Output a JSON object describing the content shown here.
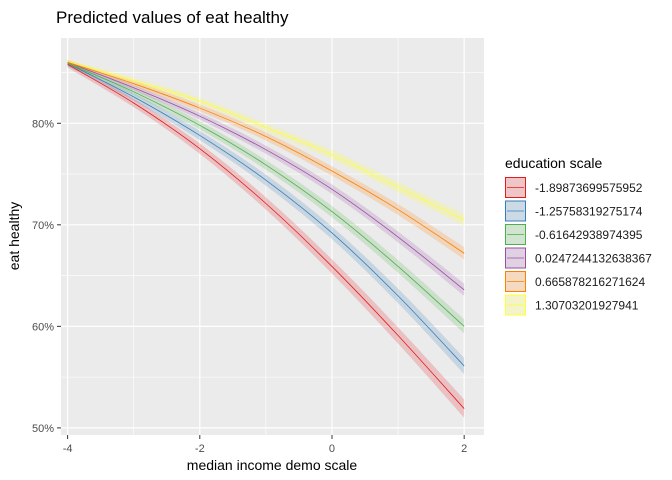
{
  "chart_data": {
    "type": "line",
    "title": "Predicted values of eat healthy",
    "xlabel": "median income demo scale",
    "ylabel": "eat healthy",
    "xlim": [
      -4.1,
      2.3
    ],
    "ylim": [
      49.3,
      88.4
    ],
    "x_ticks": [
      -4,
      -2,
      0,
      2
    ],
    "x_tick_labels": [
      "-4",
      "-2",
      "0",
      "2"
    ],
    "y_ticks": [
      50,
      60,
      70,
      80
    ],
    "y_tick_labels": [
      "50%",
      "60%",
      "70%",
      "80%"
    ],
    "grid": true,
    "background": "#ebebeb",
    "legend": {
      "title": "education scale",
      "placement": "right"
    },
    "x": [
      -4,
      -3,
      -2,
      -1,
      0,
      1,
      2
    ],
    "series": [
      {
        "name": "-1.89873699575952",
        "color": "#e41a1c",
        "values": [
          85.8,
          82.0,
          77.5,
          72.1,
          65.9,
          59.1,
          51.9
        ],
        "band": 0.9
      },
      {
        "name": "-1.25758319275174",
        "color": "#377eb8",
        "values": [
          85.9,
          82.6,
          78.8,
          74.4,
          69.2,
          63.0,
          56.1
        ],
        "band": 0.8
      },
      {
        "name": "-0.61642938974395",
        "color": "#4daf4a",
        "values": [
          85.9,
          83.1,
          79.8,
          75.9,
          71.3,
          65.9,
          60.0
        ],
        "band": 0.7
      },
      {
        "name": "0.0247244132638367",
        "color": "#984ea3",
        "values": [
          86.0,
          83.5,
          80.7,
          77.4,
          73.5,
          68.8,
          63.6
        ],
        "band": 0.6
      },
      {
        "name": "0.665878216271624",
        "color": "#ff7f00",
        "values": [
          86.0,
          83.9,
          81.5,
          78.7,
          75.3,
          71.5,
          67.2
        ],
        "band": 0.6
      },
      {
        "name": "1.30703201927941",
        "color": "#ffff33",
        "values": [
          86.1,
          84.2,
          82.2,
          79.6,
          76.9,
          73.7,
          70.5
        ],
        "band": 0.6
      }
    ]
  }
}
